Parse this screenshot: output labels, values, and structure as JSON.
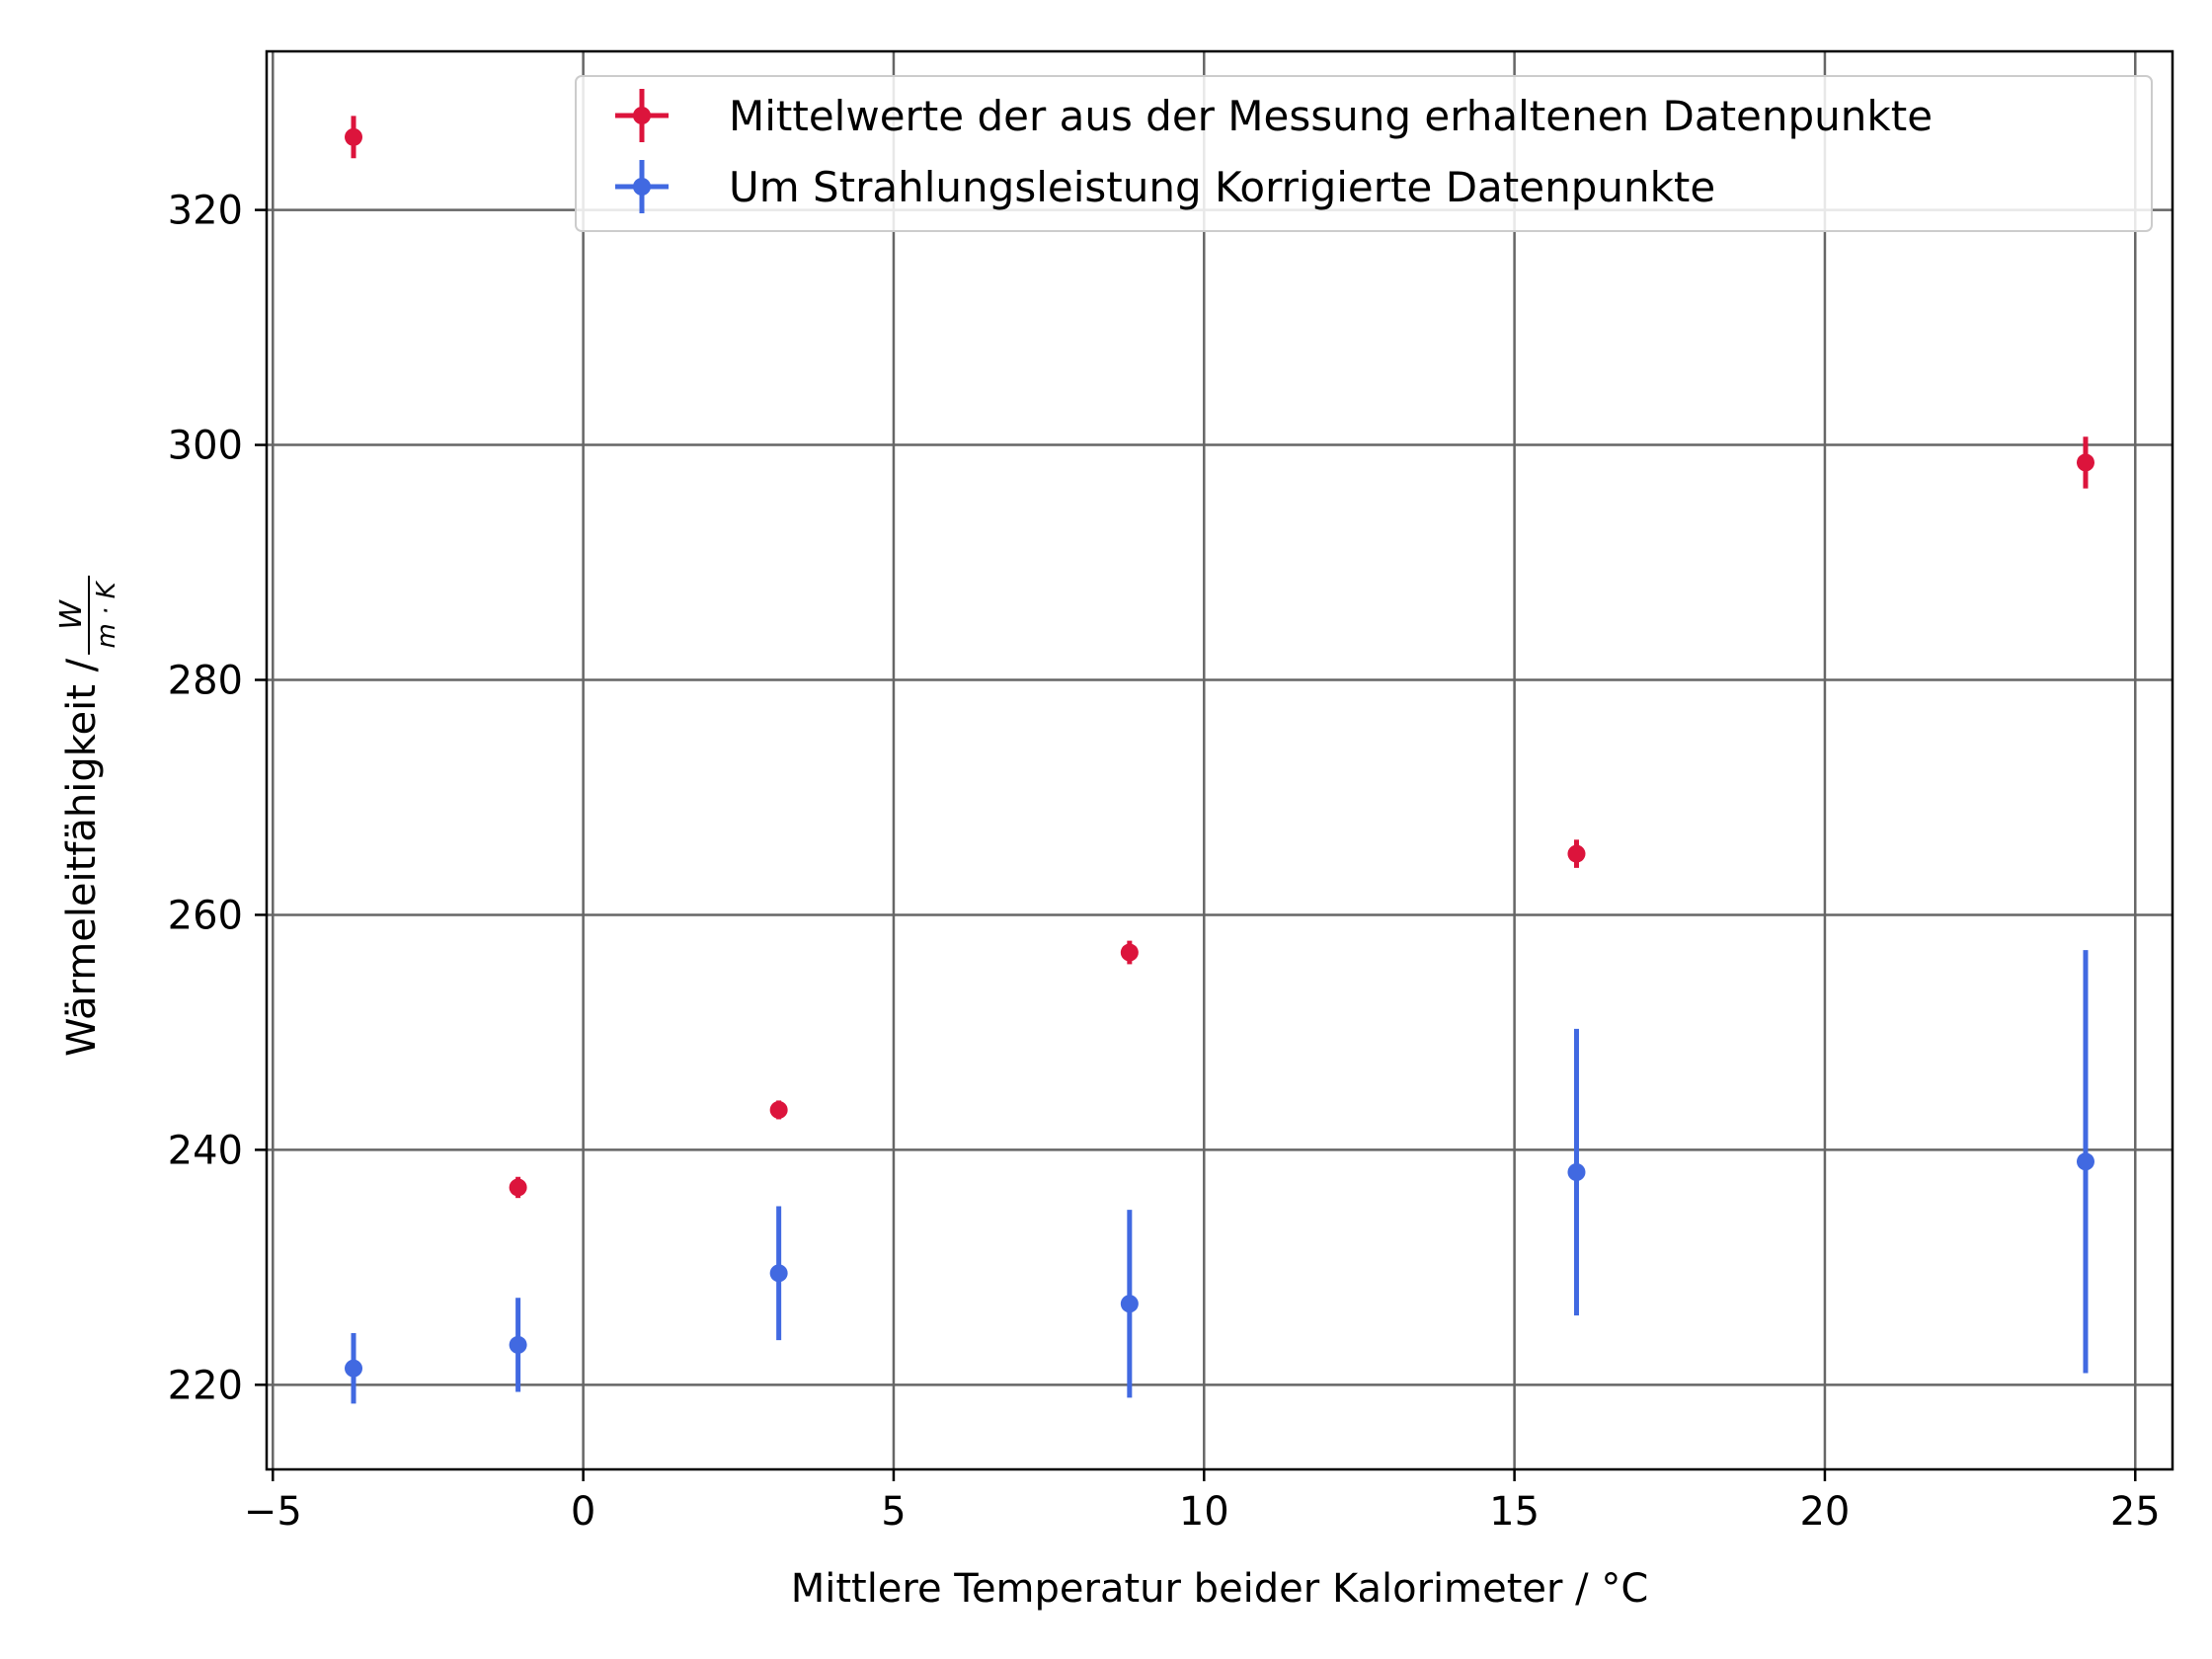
{
  "chart_data": {
    "type": "scatter",
    "title": "",
    "xlabel": "Mittlere Temperatur beider Kalorimeter / °C",
    "ylabel_text": "Wärmeleitfähigkeit / ",
    "ylabel_unit_num": "W",
    "ylabel_unit_den": "m · K",
    "xlim": [
      -5.1,
      25.6
    ],
    "ylim": [
      212.8,
      333.5
    ],
    "x_ticks": [
      -5,
      0,
      5,
      10,
      15,
      20,
      25
    ],
    "x_tick_labels": [
      "−5",
      "0",
      "5",
      "10",
      "15",
      "20",
      "25"
    ],
    "y_ticks": [
      220,
      240,
      260,
      280,
      300,
      320
    ],
    "y_tick_labels": [
      "220",
      "240",
      "260",
      "280",
      "300",
      "320"
    ],
    "grid": true,
    "legend_position": "top-right",
    "series": [
      {
        "name": "Mittelwerte der aus der Messung erhaltenen Datenpunkte",
        "color": "#dc143c",
        "x": [
          -3.7,
          -1.05,
          3.15,
          8.8,
          16.0,
          24.2
        ],
        "y": [
          326.2,
          236.8,
          243.4,
          256.8,
          265.2,
          298.5
        ],
        "yerr": [
          1.8,
          0.9,
          0.8,
          1.0,
          1.2,
          2.2
        ]
      },
      {
        "name": "Um Strahlungsleistung Korrigierte Datenpunkte",
        "color": "#4169e1",
        "x": [
          -3.7,
          -1.05,
          3.15,
          8.8,
          16.0,
          24.2
        ],
        "y": [
          221.4,
          223.4,
          229.5,
          226.9,
          238.1,
          239.0
        ],
        "yerr": [
          3.0,
          4.0,
          5.7,
          8.0,
          12.2,
          18.0
        ]
      }
    ]
  }
}
